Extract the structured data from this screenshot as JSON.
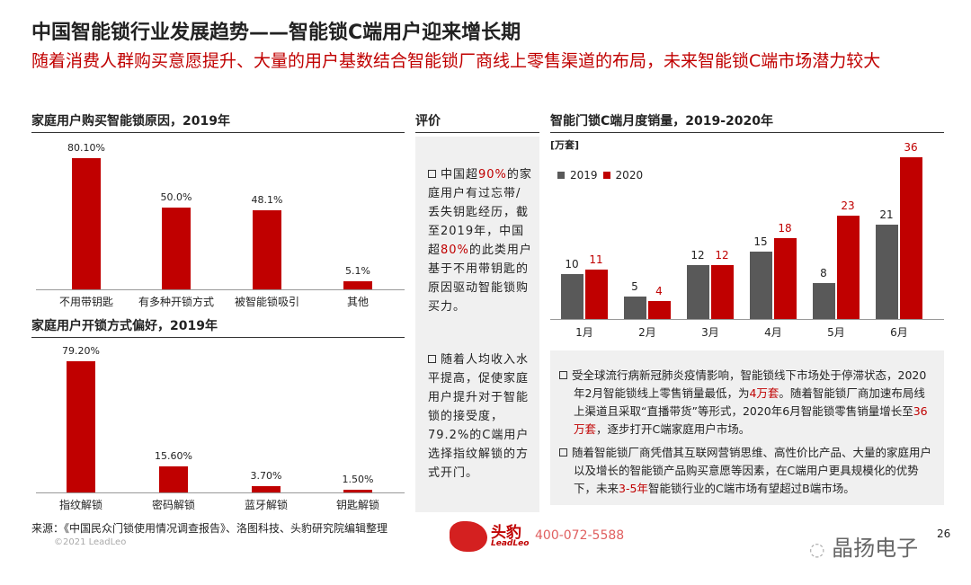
{
  "title": "中国智能锁行业发展趋势——智能锁C端用户迎来增长期",
  "subtitle": "随着消费人群购买意愿提升、大量的用户基数结合智能锁厂商线上零售渠道的布局，未来智能锁C端市场潜力较大",
  "accent_color": "#c00000",
  "secondary_color": "#595959",
  "chart_data": [
    {
      "type": "bar",
      "title": "家庭用户购买智能锁原因，2019年",
      "categories": [
        "不用带钥匙",
        "有多种开锁方式",
        "被智能锁吸引",
        "其他"
      ],
      "values": [
        80.1,
        50.0,
        48.1,
        5.1
      ],
      "labels": [
        "80.10%",
        "50.0%",
        "48.1%",
        "5.1%"
      ]
    },
    {
      "type": "bar",
      "title": "家庭用户开锁方式偏好，2019年",
      "categories": [
        "指纹解锁",
        "密码解锁",
        "蓝牙解锁",
        "钥匙解锁"
      ],
      "values": [
        79.2,
        15.6,
        3.7,
        1.5
      ],
      "labels": [
        "79.20%",
        "15.60%",
        "3.70%",
        "1.50%"
      ]
    },
    {
      "type": "bar",
      "title": "智能门锁C端月度销量，2019-2020年",
      "unit": "[万套]",
      "categories": [
        "1月",
        "2月",
        "3月",
        "4月",
        "5月",
        "6月"
      ],
      "legend": "top-left",
      "series": [
        {
          "name": "2019",
          "color": "#595959",
          "values": [
            10,
            5,
            12,
            15,
            8,
            21
          ]
        },
        {
          "name": "2020",
          "color": "#c00000",
          "values": [
            11,
            4,
            12,
            18,
            23,
            36
          ]
        }
      ]
    }
  ],
  "eval": {
    "header": "评价",
    "b1": [
      "中国超",
      "90%",
      "的家庭用户有过忘带/丢失钥匙经历，截至2019年，中国超",
      "80%",
      "的此类用户基于不用带钥匙的原因驱动智能锁购买力。"
    ],
    "b2": "随着人均收入水平提高，促使家庭用户提升对于智能锁的接受度，79.2%的C端用户选择指纹解锁的方式开门。"
  },
  "right_notes": {
    "b1": [
      "受全球流行病新冠肺炎疫情影响，智能锁线下市场处于停滞状态，2020年2月智能锁线上零售销量最低，为",
      "4万套",
      "。随着智能锁厂商加速布局线上渠道且采取“直播带货”等形式，2020年6月智能锁零售销量增长至",
      "36万套",
      "，逐步打开C端家庭用户市场。"
    ],
    "b2": [
      "随着智能锁厂商凭借其互联网营销思维、高性价比产品、大量的家庭用户以及增长的智能锁产品购买意愿等因素，在C端用户更具规模化的优势下，未来",
      "3-5年",
      "智能锁行业的C端市场有望超过B端市场。"
    ]
  },
  "footer": {
    "source": "来源：《中国民众门锁使用情况调查报告》、洛图科技、头豹研究院编辑整理",
    "copyright": "©2021 LeadLeo",
    "logo_cn": "头豹",
    "logo_en": "LeadLeo",
    "phone": "400-072-5588",
    "watermark": "晶扬电子",
    "page": "26"
  }
}
